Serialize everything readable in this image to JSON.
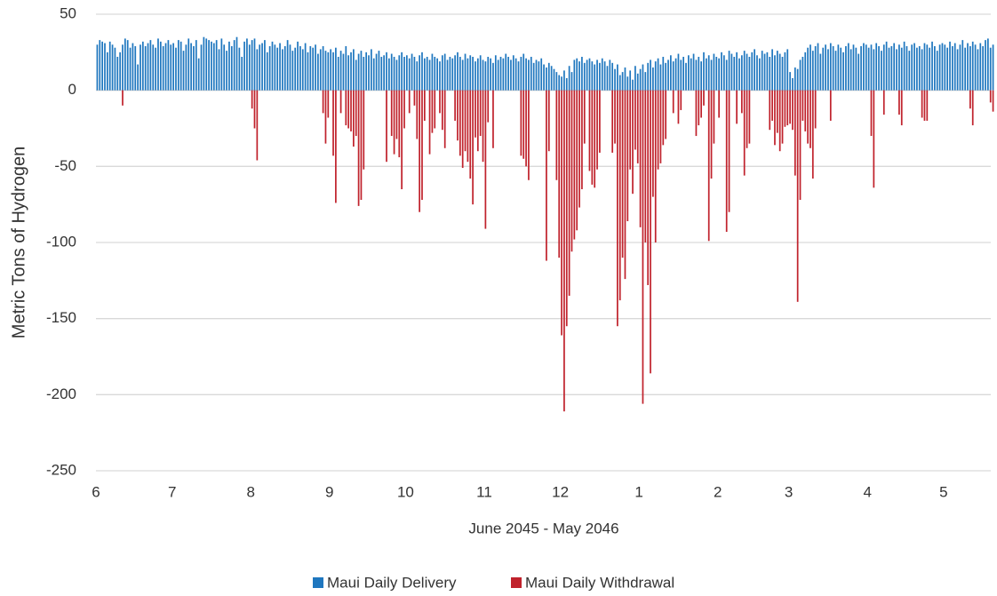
{
  "chart_data": {
    "type": "bar",
    "x_label": "June 2045 - May 2046",
    "y_label": "Metric Tons of Hydrogen",
    "xlim": [
      0,
      354
    ],
    "xticks": [
      {
        "value": 0,
        "label": "6"
      },
      {
        "value": 30,
        "label": "7"
      },
      {
        "value": 61,
        "label": "8"
      },
      {
        "value": 92,
        "label": "9"
      },
      {
        "value": 122,
        "label": "10"
      },
      {
        "value": 153,
        "label": "11"
      },
      {
        "value": 183,
        "label": "12"
      },
      {
        "value": 214,
        "label": "1"
      },
      {
        "value": 245,
        "label": "2"
      },
      {
        "value": 273,
        "label": "3"
      },
      {
        "value": 304,
        "label": "4"
      },
      {
        "value": 334,
        "label": "5"
      }
    ],
    "ylim": [
      -250,
      50
    ],
    "yticks": [
      50,
      0,
      -50,
      -100,
      -150,
      -200,
      -250
    ],
    "grid": true,
    "legend": "bottom",
    "x": [
      0,
      1,
      2,
      3,
      4,
      5,
      6,
      7,
      8,
      9,
      10,
      11,
      12,
      13,
      14,
      15,
      16,
      17,
      18,
      19,
      20,
      21,
      22,
      23,
      24,
      25,
      26,
      27,
      28,
      29,
      30,
      31,
      32,
      33,
      34,
      35,
      36,
      37,
      38,
      39,
      40,
      41,
      42,
      43,
      44,
      45,
      46,
      47,
      48,
      49,
      50,
      51,
      52,
      53,
      54,
      55,
      56,
      57,
      58,
      59,
      60,
      61,
      62,
      63,
      64,
      65,
      66,
      67,
      68,
      69,
      70,
      71,
      72,
      73,
      74,
      75,
      76,
      77,
      78,
      79,
      80,
      81,
      82,
      83,
      84,
      85,
      86,
      87,
      88,
      89,
      90,
      91,
      92,
      93,
      94,
      95,
      96,
      97,
      98,
      99,
      100,
      101,
      102,
      103,
      104,
      105,
      106,
      107,
      108,
      109,
      110,
      111,
      112,
      113,
      114,
      115,
      116,
      117,
      118,
      119,
      120,
      121,
      122,
      123,
      124,
      125,
      126,
      127,
      128,
      129,
      130,
      131,
      132,
      133,
      134,
      135,
      136,
      137,
      138,
      139,
      140,
      141,
      142,
      143,
      144,
      145,
      146,
      147,
      148,
      149,
      150,
      151,
      152,
      153,
      154,
      155,
      156,
      157,
      158,
      159,
      160,
      161,
      162,
      163,
      164,
      165,
      166,
      167,
      168,
      169,
      170,
      171,
      172,
      173,
      174,
      175,
      176,
      177,
      178,
      179,
      180,
      181,
      182,
      183,
      184,
      185,
      186,
      187,
      188,
      189,
      190,
      191,
      192,
      193,
      194,
      195,
      196,
      197,
      198,
      199,
      200,
      201,
      202,
      203,
      204,
      205,
      206,
      207,
      208,
      209,
      210,
      211,
      212,
      213,
      214,
      215,
      216,
      217,
      218,
      219,
      220,
      221,
      222,
      223,
      224,
      225,
      226,
      227,
      228,
      229,
      230,
      231,
      232,
      233,
      234,
      235,
      236,
      237,
      238,
      239,
      240,
      241,
      242,
      243,
      244,
      245,
      246,
      247,
      248,
      249,
      250,
      251,
      252,
      253,
      254,
      255,
      256,
      257,
      258,
      259,
      260,
      261,
      262,
      263,
      264,
      265,
      266,
      267,
      268,
      269,
      270,
      271,
      272,
      273,
      274,
      275,
      276,
      277,
      278,
      279,
      280,
      281,
      282,
      283,
      284,
      285,
      286,
      287,
      288,
      289,
      290,
      291,
      292,
      293,
      294,
      295,
      296,
      297,
      298,
      299,
      300,
      301,
      302,
      303,
      304,
      305,
      306,
      307,
      308,
      309,
      310,
      311,
      312,
      313,
      314,
      315,
      316,
      317,
      318,
      319,
      320,
      321,
      322,
      323,
      324,
      325,
      326,
      327,
      328,
      329,
      330,
      331,
      332,
      333,
      334,
      335,
      336,
      337,
      338,
      339,
      340,
      341,
      342,
      343,
      344,
      345,
      346,
      347,
      348,
      349,
      350,
      351,
      352,
      353
    ],
    "series": [
      {
        "name": "Maui Daily Delivery",
        "color": "#1f77bf",
        "values": [
          30,
          33,
          32,
          31,
          25,
          32,
          30,
          28,
          22,
          25,
          30,
          34,
          33,
          28,
          31,
          29,
          17,
          30,
          32,
          29,
          31,
          33,
          30,
          28,
          34,
          32,
          29,
          31,
          33,
          30,
          31,
          28,
          33,
          32,
          26,
          30,
          34,
          31,
          29,
          33,
          21,
          30,
          35,
          34,
          33,
          32,
          31,
          33,
          27,
          34,
          30,
          26,
          32,
          29,
          33,
          35,
          28,
          22,
          32,
          34,
          30,
          33,
          34,
          27,
          30,
          31,
          33,
          25,
          29,
          32,
          30,
          28,
          31,
          27,
          29,
          33,
          30,
          26,
          28,
          32,
          29,
          27,
          31,
          25,
          29,
          28,
          30,
          24,
          27,
          29,
          26,
          25,
          27,
          25,
          28,
          22,
          26,
          24,
          29,
          23,
          25,
          27,
          20,
          24,
          26,
          22,
          25,
          23,
          27,
          21,
          24,
          26,
          22,
          23,
          25,
          21,
          24,
          22,
          20,
          23,
          25,
          22,
          23,
          21,
          24,
          22,
          19,
          23,
          25,
          21,
          22,
          20,
          24,
          22,
          21,
          19,
          23,
          24,
          20,
          22,
          21,
          23,
          25,
          22,
          20,
          24,
          21,
          23,
          22,
          19,
          21,
          23,
          20,
          19,
          22,
          21,
          18,
          23,
          20,
          22,
          21,
          24,
          22,
          20,
          23,
          21,
          19,
          22,
          24,
          21,
          20,
          22,
          18,
          20,
          19,
          21,
          17,
          15,
          18,
          16,
          14,
          12,
          10,
          9,
          13,
          8,
          16,
          12,
          20,
          21,
          19,
          22,
          18,
          20,
          21,
          19,
          17,
          20,
          18,
          21,
          19,
          16,
          20,
          18,
          14,
          17,
          10,
          12,
          15,
          9,
          13,
          7,
          16,
          11,
          14,
          17,
          12,
          18,
          20,
          15,
          19,
          21,
          17,
          22,
          18,
          20,
          23,
          19,
          21,
          24,
          20,
          22,
          18,
          23,
          21,
          24,
          20,
          22,
          19,
          25,
          21,
          23,
          20,
          24,
          22,
          21,
          25,
          23,
          20,
          26,
          24,
          22,
          25,
          21,
          23,
          26,
          24,
          22,
          25,
          27,
          23,
          21,
          26,
          24,
          25,
          22,
          27,
          23,
          26,
          24,
          22,
          25,
          27,
          12,
          8,
          15,
          14,
          20,
          22,
          25,
          28,
          30,
          26,
          29,
          31,
          24,
          28,
          30,
          27,
          31,
          29,
          26,
          30,
          28,
          25,
          29,
          31,
          27,
          30,
          28,
          24,
          29,
          31,
          30,
          28,
          30,
          27,
          31,
          29,
          26,
          30,
          32,
          28,
          29,
          31,
          27,
          30,
          28,
          32,
          29,
          26,
          30,
          31,
          28,
          29,
          27,
          31,
          30,
          28,
          32,
          29,
          26,
          30,
          31,
          30,
          28,
          32,
          29,
          31,
          27,
          30,
          33,
          28,
          31,
          29,
          32,
          30,
          27,
          31,
          29,
          33,
          34,
          28,
          30
        ]
      },
      {
        "name": "Maui Daily Withdrawal",
        "color": "#c0222c",
        "values": [
          0,
          0,
          0,
          0,
          0,
          0,
          0,
          0,
          0,
          0,
          -10,
          0,
          0,
          0,
          0,
          0,
          0,
          0,
          0,
          0,
          0,
          0,
          0,
          0,
          0,
          0,
          0,
          0,
          0,
          0,
          0,
          0,
          0,
          0,
          0,
          0,
          0,
          0,
          0,
          0,
          0,
          0,
          0,
          0,
          0,
          0,
          0,
          0,
          0,
          0,
          0,
          0,
          0,
          0,
          0,
          0,
          0,
          0,
          0,
          0,
          0,
          -12,
          -25,
          -46,
          0,
          0,
          0,
          0,
          0,
          0,
          0,
          0,
          0,
          0,
          0,
          0,
          0,
          0,
          0,
          0,
          0,
          0,
          0,
          0,
          0,
          0,
          0,
          0,
          0,
          -15,
          -35,
          -18,
          0,
          -43,
          -74,
          0,
          -15,
          0,
          -23,
          -25,
          -27,
          -37,
          -30,
          -76,
          -72,
          -52,
          0,
          0,
          0,
          0,
          0,
          0,
          0,
          0,
          -47,
          0,
          -30,
          -42,
          -32,
          -44,
          -65,
          -25,
          0,
          -15,
          0,
          -10,
          -32,
          -80,
          -72,
          -20,
          0,
          -42,
          -28,
          -25,
          0,
          -15,
          -26,
          -38,
          0,
          0,
          0,
          -20,
          -33,
          -43,
          -51,
          -40,
          -47,
          -58,
          -75,
          -31,
          -40,
          -30,
          -47,
          -91,
          -21,
          0,
          -38,
          0,
          0,
          0,
          0,
          0,
          0,
          0,
          0,
          0,
          0,
          -43,
          -45,
          -50,
          -59,
          0,
          0,
          0,
          0,
          0,
          0,
          -112,
          -40,
          0,
          0,
          -59,
          -110,
          -161,
          -211,
          -155,
          -135,
          -106,
          -98,
          -92,
          -77,
          -65,
          -35,
          0,
          -53,
          -62,
          -64,
          -52,
          -41,
          0,
          0,
          0,
          0,
          -41,
          -35,
          -155,
          -138,
          -110,
          -124,
          -86,
          -52,
          -68,
          -39,
          -48,
          -90,
          -206,
          -100,
          -128,
          -186,
          -70,
          -100,
          -52,
          -48,
          -36,
          -32,
          0,
          0,
          -15,
          0,
          -22,
          -13,
          0,
          0,
          0,
          0,
          0,
          -30,
          -23,
          -18,
          -10,
          0,
          -99,
          -58,
          -35,
          0,
          -18,
          0,
          0,
          -93,
          -80,
          0,
          0,
          -22,
          0,
          -15,
          -56,
          -38,
          -35,
          0,
          0,
          0,
          0,
          0,
          0,
          0,
          -26,
          -20,
          -36,
          -28,
          -40,
          -35,
          -24,
          -23,
          -22,
          -26,
          -56,
          -139,
          -72,
          -20,
          -27,
          -35,
          -38,
          -58,
          -25,
          0,
          0,
          0,
          0,
          0,
          -20,
          0,
          0,
          0,
          0,
          0,
          0,
          0,
          0,
          0,
          0,
          0,
          0,
          0,
          0,
          0,
          -30,
          -64,
          0,
          0,
          0,
          -16,
          0,
          0,
          0,
          0,
          0,
          -16,
          -23,
          0,
          0,
          0,
          0,
          0,
          0,
          0,
          -18,
          -20,
          -20,
          0,
          0,
          0,
          0,
          0,
          0,
          0,
          0,
          0,
          0,
          0,
          0,
          0,
          0,
          0,
          0,
          -12,
          -23,
          0,
          0,
          0,
          0,
          0,
          0,
          -8,
          -14
        ]
      }
    ]
  }
}
